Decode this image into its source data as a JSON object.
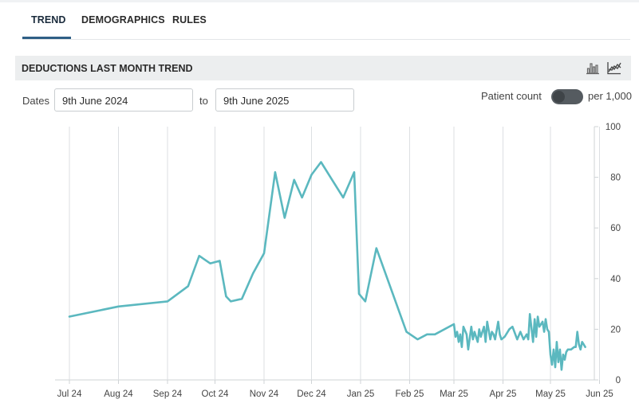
{
  "tabs": [
    {
      "label": "TREND",
      "active": true
    },
    {
      "label": "DEMOGRAPHICS",
      "active": false
    },
    {
      "label": "RULES",
      "active": false
    }
  ],
  "panel": {
    "title": "DEDUCTIONS LAST MONTH TREND",
    "icons": [
      "bar-chart-icon",
      "line-chart-icon"
    ]
  },
  "filters": {
    "dates_label": "Dates",
    "from_value": "9th June 2024",
    "to_label": "to",
    "to_value": "9th June 2025",
    "toggle_left_label": "Patient count",
    "toggle_right_label": "per 1,000"
  },
  "colors": {
    "line": "#5bb8bf",
    "grid": "#dcdfe2",
    "accent_tab": "#2f5f86"
  },
  "chart_data": {
    "type": "line",
    "title": "",
    "xlabel": "",
    "ylabel": "",
    "ylim": [
      0,
      100
    ],
    "grid": true,
    "xlim": [
      "2024-07-01",
      "2025-06-08"
    ],
    "x_ticks": [
      {
        "label": "Jul 24",
        "date": "2024-07-01"
      },
      {
        "label": "Aug 24",
        "date": "2024-08-01"
      },
      {
        "label": "Sep 24",
        "date": "2024-09-01"
      },
      {
        "label": "Oct 24",
        "date": "2024-10-01"
      },
      {
        "label": "Nov 24",
        "date": "2024-11-01"
      },
      {
        "label": "Dec 24",
        "date": "2024-12-01"
      },
      {
        "label": "Jan 25",
        "date": "2025-01-01"
      },
      {
        "label": "Feb 25",
        "date": "2025-02-01"
      },
      {
        "label": "Mar 25",
        "date": "2025-03-01"
      },
      {
        "label": "Apr 25",
        "date": "2025-04-01"
      },
      {
        "label": "May 25",
        "date": "2025-05-01"
      },
      {
        "label": "Jun 25",
        "date": "2025-06-01"
      }
    ],
    "y_ticks": [
      0,
      20,
      40,
      60,
      80,
      100
    ],
    "series": [
      {
        "name": "",
        "x": [
          "2024-07-01",
          "2024-08-01",
          "2024-09-01",
          "2024-09-14",
          "2024-09-21",
          "2024-09-28",
          "2024-10-04",
          "2024-10-08",
          "2024-10-11",
          "2024-10-18",
          "2024-10-25",
          "2024-11-01",
          "2024-11-08",
          "2024-11-14",
          "2024-11-20",
          "2024-11-25",
          "2024-12-01",
          "2024-12-07",
          "2024-12-14",
          "2024-12-21",
          "2024-12-28",
          "2024-12-31",
          "2025-01-04",
          "2025-01-11",
          "2025-01-30",
          "2025-02-06",
          "2025-02-12",
          "2025-02-17",
          "2025-03-01",
          "2025-03-02",
          "2025-03-03",
          "2025-03-04",
          "2025-03-05",
          "2025-03-06",
          "2025-03-07",
          "2025-03-09",
          "2025-03-10",
          "2025-03-12",
          "2025-03-13",
          "2025-03-14",
          "2025-03-16",
          "2025-03-17",
          "2025-03-18",
          "2025-03-20",
          "2025-03-21",
          "2025-03-22",
          "2025-03-24",
          "2025-03-25",
          "2025-03-26",
          "2025-03-27",
          "2025-03-29",
          "2025-03-30",
          "2025-03-31",
          "2025-04-02",
          "2025-04-03",
          "2025-04-05",
          "2025-04-07",
          "2025-04-10",
          "2025-04-12",
          "2025-04-14",
          "2025-04-16",
          "2025-04-17",
          "2025-04-18",
          "2025-04-20",
          "2025-04-21",
          "2025-04-22",
          "2025-04-23",
          "2025-04-24",
          "2025-04-26",
          "2025-04-27",
          "2025-04-28",
          "2025-04-29",
          "2025-04-30",
          "2025-05-01",
          "2025-05-02",
          "2025-05-03",
          "2025-05-04",
          "2025-05-05",
          "2025-05-06",
          "2025-05-07",
          "2025-05-08",
          "2025-05-09",
          "2025-05-10",
          "2025-05-11",
          "2025-05-12",
          "2025-05-14",
          "2025-05-16",
          "2025-05-17",
          "2025-05-18",
          "2025-05-19",
          "2025-05-20",
          "2025-05-21",
          "2025-05-22",
          "2025-05-23"
        ],
        "values": [
          25,
          29,
          31,
          37,
          49,
          46,
          47,
          33,
          31,
          32,
          42,
          50,
          82,
          64,
          79,
          72,
          81,
          86,
          79,
          72,
          82,
          34,
          31,
          52,
          19,
          16,
          18,
          18,
          22,
          17,
          19,
          15,
          18,
          13,
          21,
          18,
          12,
          21,
          16,
          19,
          15,
          20,
          17,
          21,
          15,
          23,
          16,
          19,
          18,
          16,
          23,
          18,
          16,
          17,
          18,
          20,
          21,
          16,
          19,
          16,
          18,
          16,
          26,
          15,
          24,
          17,
          25,
          21,
          23,
          19,
          24,
          20,
          19,
          10,
          6,
          12,
          5,
          15,
          7,
          12,
          4,
          10,
          8,
          11,
          12,
          12,
          13,
          13,
          19,
          14,
          12,
          15,
          14,
          13
        ]
      }
    ]
  }
}
